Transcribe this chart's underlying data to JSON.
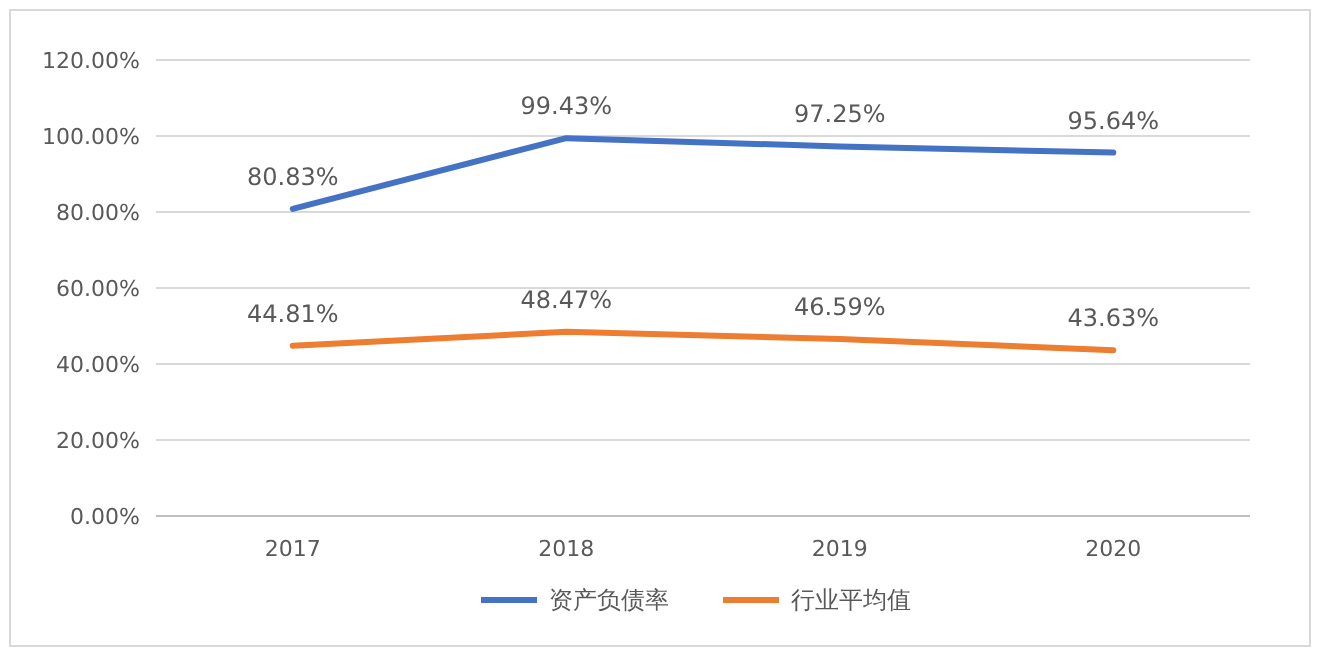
{
  "chart_data": {
    "type": "line",
    "categories": [
      "2017",
      "2018",
      "2019",
      "2020"
    ],
    "series": [
      {
        "name": "资产负债率",
        "color": "#4472c4",
        "values": [
          80.83,
          99.43,
          97.25,
          95.64
        ],
        "value_labels": [
          "80.83%",
          "99.43%",
          "97.25%",
          "95.64%"
        ]
      },
      {
        "name": "行业平均值",
        "color": "#ed7d31",
        "values": [
          44.81,
          48.47,
          46.59,
          43.63
        ],
        "value_labels": [
          "44.81%",
          "48.47%",
          "46.59%",
          "43.63%"
        ]
      }
    ],
    "ylim": [
      0,
      120
    ],
    "yticks": [
      {
        "value": 0,
        "label": "0.00%"
      },
      {
        "value": 20,
        "label": "20.00%"
      },
      {
        "value": 40,
        "label": "40.00%"
      },
      {
        "value": 60,
        "label": "60.00%"
      },
      {
        "value": 80,
        "label": "80.00%"
      },
      {
        "value": 100,
        "label": "100.00%"
      },
      {
        "value": 120,
        "label": "120.00%"
      }
    ],
    "grid": "y",
    "legend": "bottom"
  }
}
